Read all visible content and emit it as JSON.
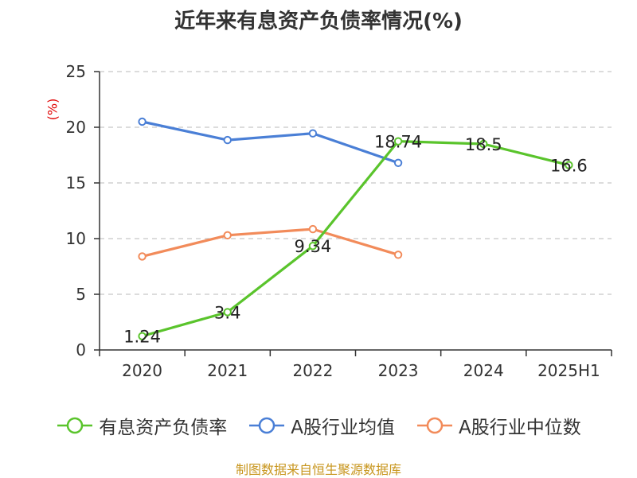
{
  "chart_data": {
    "type": "line",
    "title": "近年来有息资产负债率情况(%)",
    "unit": "(%)",
    "categories": [
      "2020",
      "2021",
      "2022",
      "2023",
      "2024",
      "2025H1"
    ],
    "ylim": [
      0,
      25
    ],
    "yticks": [
      0,
      5,
      10,
      15,
      20,
      25
    ],
    "grid": true,
    "legend_position": "bottom",
    "series": [
      {
        "name": "有息资产负债率",
        "color": "#5ac42c",
        "values": [
          1.24,
          3.4,
          9.34,
          18.74,
          18.5,
          16.6
        ],
        "labels": [
          "1.24",
          "3.4",
          "9.34",
          "18.74",
          "18.5",
          "16.6"
        ]
      },
      {
        "name": "A股行业均值",
        "color": "#4a7fd6",
        "values": [
          20.5,
          18.85,
          19.45,
          16.8,
          null,
          null
        ]
      },
      {
        "name": "A股行业中位数",
        "color": "#f28b5a",
        "values": [
          8.4,
          10.3,
          10.85,
          8.55,
          null,
          null
        ]
      }
    ]
  },
  "source": "制图数据来自恒生聚源数据库"
}
